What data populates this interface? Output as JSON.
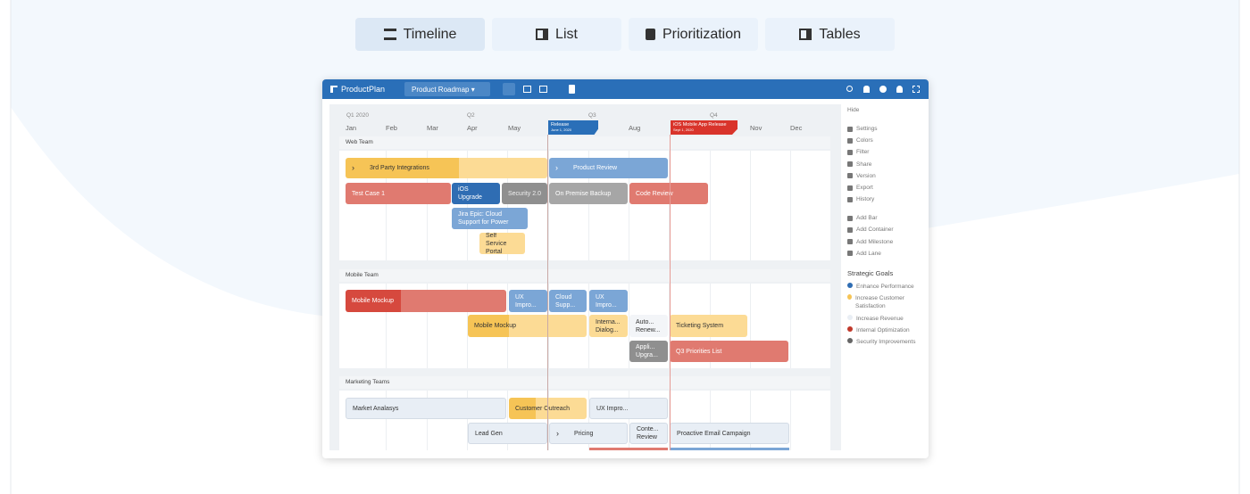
{
  "tabs": [
    "Timeline",
    "List",
    "Prioritization",
    "Tables"
  ],
  "app": {
    "brand": "ProductPlan",
    "roadmap": "Product Roadmap"
  },
  "timeline": {
    "quarters": [
      "Q1 2020",
      "Q2",
      "Q3",
      "Q4"
    ],
    "months": [
      "Jan",
      "Feb",
      "Mar",
      "Apr",
      "May",
      "Aug",
      "Nov",
      "Dec"
    ],
    "milestones": [
      {
        "title": "Release",
        "date": "June 1, 2020"
      },
      {
        "title": "iOS Mobile App Release",
        "date": "Sept 1, 2020"
      }
    ],
    "lanes": [
      {
        "name": "Web Team",
        "bars": [
          "3rd Party Integrations",
          "Product Review",
          "Test Case 1",
          "iOS Upgrade",
          "Security 2.0",
          "On Premise Backup",
          "Code Review",
          "Jira Epic: Cloud Support for Power",
          "Self Service Portal"
        ]
      },
      {
        "name": "Mobile Team",
        "bars": [
          "Mobile Mockup",
          "UX Impro...",
          "Cloud Supp...",
          "UX Impro...",
          "Mobile Mockup",
          "Interna... Dialog...",
          "Auto... Renew...",
          "Ticketing System",
          "Appli... Upgra...",
          "Q3 Priorities List"
        ]
      },
      {
        "name": "Marketing Teams",
        "bars": [
          "Market Analasys",
          "Customer Outreach",
          "UX Impro...",
          "Lead Gen",
          "Pricing",
          "Conte... Review",
          "Proactive Email Campaign"
        ]
      }
    ]
  },
  "sidebar": {
    "hide": "Hide",
    "actions": [
      "Settings",
      "Colors",
      "Filter",
      "Share",
      "Version",
      "Export",
      "History"
    ],
    "add": [
      "Add Bar",
      "Add Container",
      "Add Milestone",
      "Add Lane"
    ],
    "goals_title": "Strategic Goals",
    "goals": [
      "Enhance Performance",
      "Increase Customer Satisfaction",
      "Increase Revenue",
      "Internal Optimization",
      "Security Improvements"
    ]
  }
}
